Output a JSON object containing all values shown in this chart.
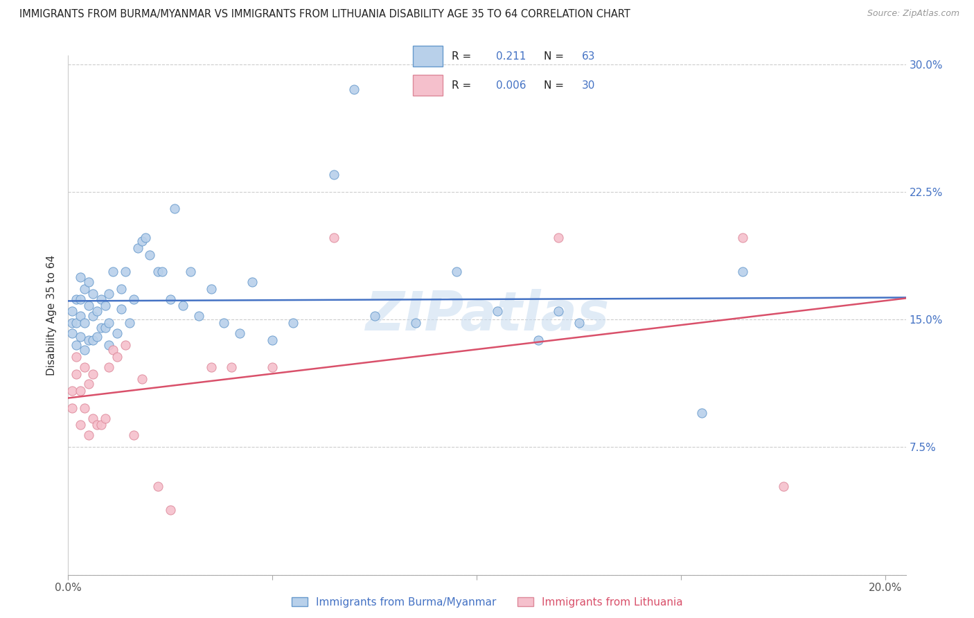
{
  "title": "IMMIGRANTS FROM BURMA/MYANMAR VS IMMIGRANTS FROM LITHUANIA DISABILITY AGE 35 TO 64 CORRELATION CHART",
  "source": "Source: ZipAtlas.com",
  "ylabel": "Disability Age 35 to 64",
  "series1_label": "Immigrants from Burma/Myanmar",
  "series2_label": "Immigrants from Lithuania",
  "series1_R": "0.211",
  "series1_N": "63",
  "series2_R": "0.006",
  "series2_N": "30",
  "series1_fill": "#b8d0ea",
  "series2_fill": "#f5c0cc",
  "series1_edge": "#6699cc",
  "series2_edge": "#dd8899",
  "series1_line": "#4472c4",
  "series2_line": "#d9506a",
  "legend_num_color": "#4472c4",
  "right_axis_color": "#4472c4",
  "watermark": "ZIPatlas",
  "xlim": [
    0.0,
    0.205
  ],
  "ylim": [
    0.0,
    0.305
  ],
  "xticks": [
    0.0,
    0.05,
    0.1,
    0.15,
    0.2
  ],
  "yticks": [
    0.0,
    0.075,
    0.15,
    0.225,
    0.3
  ],
  "s1x": [
    0.001,
    0.001,
    0.001,
    0.002,
    0.002,
    0.002,
    0.003,
    0.003,
    0.003,
    0.003,
    0.004,
    0.004,
    0.004,
    0.005,
    0.005,
    0.005,
    0.006,
    0.006,
    0.006,
    0.007,
    0.007,
    0.008,
    0.008,
    0.009,
    0.009,
    0.01,
    0.01,
    0.01,
    0.011,
    0.012,
    0.013,
    0.013,
    0.014,
    0.015,
    0.016,
    0.017,
    0.018,
    0.019,
    0.02,
    0.022,
    0.023,
    0.025,
    0.026,
    0.028,
    0.03,
    0.032,
    0.035,
    0.038,
    0.042,
    0.045,
    0.05,
    0.055,
    0.065,
    0.07,
    0.075,
    0.085,
    0.095,
    0.105,
    0.115,
    0.12,
    0.125,
    0.155,
    0.165
  ],
  "s1y": [
    0.142,
    0.148,
    0.155,
    0.135,
    0.148,
    0.162,
    0.14,
    0.152,
    0.162,
    0.175,
    0.132,
    0.148,
    0.168,
    0.138,
    0.158,
    0.172,
    0.138,
    0.152,
    0.165,
    0.14,
    0.155,
    0.145,
    0.162,
    0.145,
    0.158,
    0.135,
    0.148,
    0.165,
    0.178,
    0.142,
    0.156,
    0.168,
    0.178,
    0.148,
    0.162,
    0.192,
    0.196,
    0.198,
    0.188,
    0.178,
    0.178,
    0.162,
    0.215,
    0.158,
    0.178,
    0.152,
    0.168,
    0.148,
    0.142,
    0.172,
    0.138,
    0.148,
    0.235,
    0.285,
    0.152,
    0.148,
    0.178,
    0.155,
    0.138,
    0.155,
    0.148,
    0.095,
    0.178
  ],
  "s2x": [
    0.001,
    0.001,
    0.002,
    0.002,
    0.003,
    0.003,
    0.004,
    0.004,
    0.005,
    0.005,
    0.006,
    0.006,
    0.007,
    0.008,
    0.009,
    0.01,
    0.011,
    0.012,
    0.014,
    0.016,
    0.018,
    0.022,
    0.025,
    0.035,
    0.04,
    0.05,
    0.065,
    0.12,
    0.165,
    0.175
  ],
  "s2y": [
    0.098,
    0.108,
    0.118,
    0.128,
    0.088,
    0.108,
    0.098,
    0.122,
    0.112,
    0.082,
    0.092,
    0.118,
    0.088,
    0.088,
    0.092,
    0.122,
    0.132,
    0.128,
    0.135,
    0.082,
    0.115,
    0.052,
    0.038,
    0.122,
    0.122,
    0.122,
    0.198,
    0.198,
    0.198,
    0.052
  ]
}
